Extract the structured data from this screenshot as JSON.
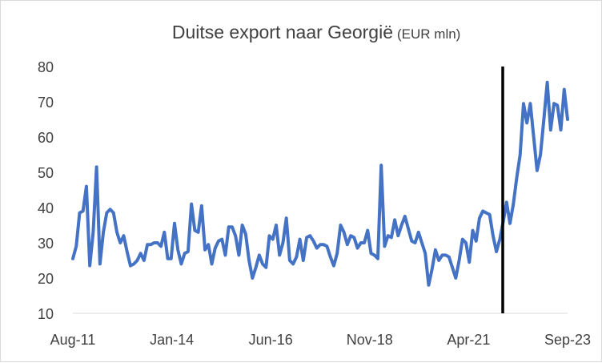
{
  "chart_data": {
    "type": "line",
    "title": "Duitse export naar Georgië",
    "subtitle": "(EUR mln)",
    "xlabel": "",
    "ylabel": "",
    "ylim": [
      10,
      80
    ],
    "yticks": [
      10,
      20,
      30,
      40,
      50,
      60,
      70,
      80
    ],
    "xtick_labels": [
      "Aug-11",
      "Jan-14",
      "Jun-16",
      "Nov-18",
      "Apr-21",
      "Sep-23"
    ],
    "x_start": "2011-08",
    "x_end": "2023-09",
    "grid": false,
    "legend": "none",
    "line_color": "#4472c4",
    "marker_line": {
      "x": "2022-02",
      "color": "#000000"
    },
    "series": [
      {
        "values": [
          25.5,
          29.0,
          38.5,
          39.0,
          46.0,
          23.5,
          33.0,
          51.5,
          24.0,
          33.0,
          38.5,
          39.5,
          38.5,
          33.0,
          30.0,
          32.0,
          27.5,
          23.5,
          24.0,
          25.0,
          27.0,
          25.0,
          29.5,
          29.5,
          30.0,
          30.0,
          29.0,
          33.0,
          25.5,
          25.5,
          35.5,
          28.0,
          24.0,
          27.0,
          27.5,
          41.0,
          33.5,
          33.0,
          40.5,
          28.0,
          29.5,
          24.0,
          28.5,
          30.5,
          31.0,
          26.5,
          34.5,
          34.5,
          32.0,
          26.5,
          35.0,
          32.5,
          25.0,
          20.0,
          23.0,
          26.5,
          24.0,
          23.0,
          32.0,
          31.0,
          35.0,
          26.5,
          30.0,
          37.0,
          25.0,
          24.0,
          26.0,
          31.0,
          25.0,
          31.5,
          32.0,
          30.5,
          28.5,
          29.5,
          29.5,
          29.0,
          26.0,
          23.5,
          27.0,
          35.0,
          33.0,
          29.5,
          32.0,
          31.5,
          28.5,
          30.0,
          30.0,
          33.5,
          27.0,
          26.5,
          25.5,
          52.0,
          29.0,
          32.0,
          31.5,
          36.5,
          32.0,
          35.0,
          37.5,
          34.0,
          30.5,
          30.0,
          33.0,
          30.0,
          27.0,
          18.0,
          22.5,
          28.0,
          25.0,
          26.5,
          26.5,
          26.0,
          23.0,
          20.0,
          25.0,
          31.0,
          30.0,
          24.5,
          33.5,
          30.5,
          37.0,
          39.0,
          38.5,
          38.0,
          32.0,
          27.5,
          31.0,
          36.0,
          41.5,
          35.5,
          41.0,
          48.5,
          55.0,
          69.5,
          64.0,
          69.5,
          60.0,
          50.5,
          55.0,
          65.0,
          75.5,
          62.0,
          69.5,
          69.0,
          62.0,
          73.5,
          65.0
        ]
      }
    ]
  }
}
